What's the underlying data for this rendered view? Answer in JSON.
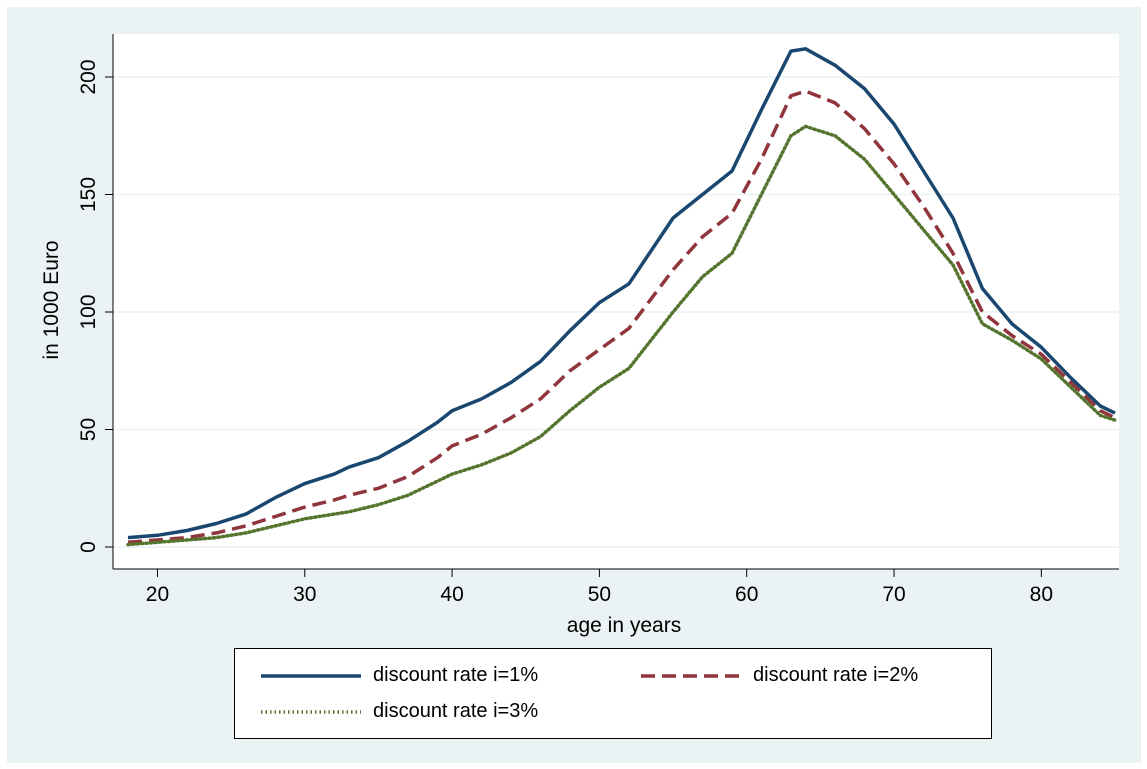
{
  "chart_data": {
    "type": "line",
    "xlabel": "age in years",
    "ylabel": "in 1000 Euro",
    "xlim": [
      18,
      85
    ],
    "ylim": [
      0,
      210
    ],
    "x_ticks": [
      20,
      30,
      40,
      50,
      60,
      70,
      80
    ],
    "y_ticks": [
      0,
      50,
      100,
      150,
      200
    ],
    "grid": "horizontal",
    "legend_position": "bottom",
    "x": [
      18,
      20,
      22,
      24,
      26,
      28,
      30,
      32,
      33,
      35,
      37,
      39,
      40,
      42,
      44,
      46,
      48,
      50,
      52,
      55,
      57,
      59,
      61,
      63,
      64,
      66,
      68,
      70,
      72,
      74,
      76,
      78,
      80,
      82,
      84,
      85
    ],
    "series": [
      {
        "name": "discount rate i=1%",
        "color": "#1a476f",
        "style": "solid",
        "values": [
          4,
          5,
          7,
          10,
          14,
          21,
          27,
          31,
          34,
          38,
          45,
          53,
          58,
          63,
          70,
          79,
          92,
          104,
          112,
          140,
          150,
          160,
          186,
          211,
          212,
          205,
          195,
          180,
          160,
          140,
          110,
          95,
          85,
          72,
          60,
          57
        ]
      },
      {
        "name": "discount rate i=2%",
        "color": "#90353b",
        "style": "dashed",
        "values": [
          2,
          3,
          4,
          6,
          9,
          13,
          17,
          20,
          22,
          25,
          30,
          38,
          43,
          48,
          55,
          63,
          75,
          84,
          93,
          118,
          132,
          142,
          165,
          192,
          194,
          189,
          178,
          163,
          145,
          125,
          100,
          90,
          82,
          70,
          58,
          55
        ]
      },
      {
        "name": "discount rate i=3%",
        "color": "#55752f",
        "style": "dotted",
        "values": [
          1,
          2,
          3,
          4,
          6,
          9,
          12,
          14,
          15,
          18,
          22,
          28,
          31,
          35,
          40,
          47,
          58,
          68,
          76,
          100,
          115,
          125,
          150,
          175,
          179,
          175,
          165,
          150,
          135,
          120,
          95,
          88,
          80,
          68,
          56,
          54
        ]
      }
    ]
  }
}
